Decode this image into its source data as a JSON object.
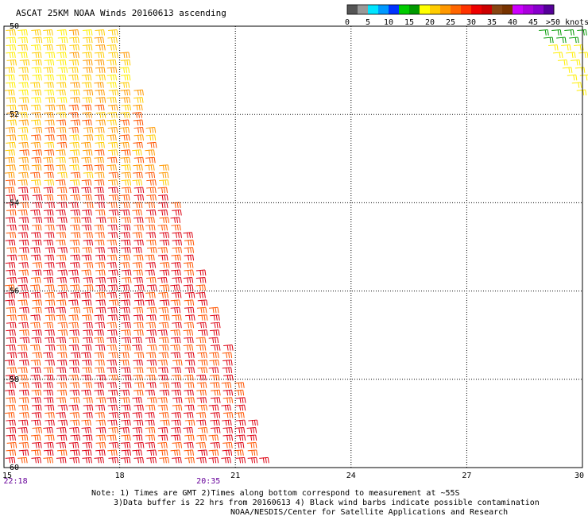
{
  "chart_data": {
    "type": "wind_barbs",
    "title": "ASCAT 25KM NOAA Winds 20160613 ascending",
    "x_ticks": [
      "15",
      "18",
      "21",
      "24",
      "27",
      "30"
    ],
    "y_ticks": [
      "-50",
      "-52",
      "-54",
      "-56",
      "-58",
      "-60"
    ],
    "xlim": [
      15,
      30
    ],
    "ylim": [
      -60,
      -50
    ],
    "grid": true,
    "time_labels": [
      {
        "text": "22:18",
        "lon": 15.3
      },
      {
        "text": "20:35",
        "lon": 20.3
      }
    ],
    "colorbar": {
      "labels": [
        "0",
        "5",
        "10",
        "15",
        "20",
        "25",
        "30",
        "35",
        "40",
        "45",
        ">50 knots"
      ],
      "colors": [
        "#555555",
        "#999999",
        "#00e5ff",
        "#0099ff",
        "#0033ff",
        "#00cc00",
        "#009900",
        "#ffff00",
        "#ffcc00",
        "#ff9900",
        "#ff6600",
        "#ff3300",
        "#ee0000",
        "#cc0000",
        "#884411",
        "#773300",
        "#cc00ff",
        "#aa00dd",
        "#8800cc",
        "#550099"
      ]
    },
    "swaths": [
      {
        "region": "west",
        "lat_range": [
          -60,
          -50
        ],
        "lon_range": [
          15,
          21.8
        ],
        "dominant_speed_knots": "30-35",
        "north_speed_knots": "20-30"
      },
      {
        "region": "northeast",
        "lat_range": [
          -51.6,
          -50
        ],
        "lon_range": [
          28.8,
          30
        ],
        "dominant_speed_knots": "15-25"
      }
    ]
  },
  "notes": {
    "line1": "Note: 1) Times are GMT 2)Times along bottom correspond to measurement at ~55S",
    "line2": "3)Data buffer is 22 hrs from 20160613 4) Black wind barbs indicate possible contamination",
    "line3": "NOAA/NESDIS/Center for Satellite Applications and Research"
  }
}
